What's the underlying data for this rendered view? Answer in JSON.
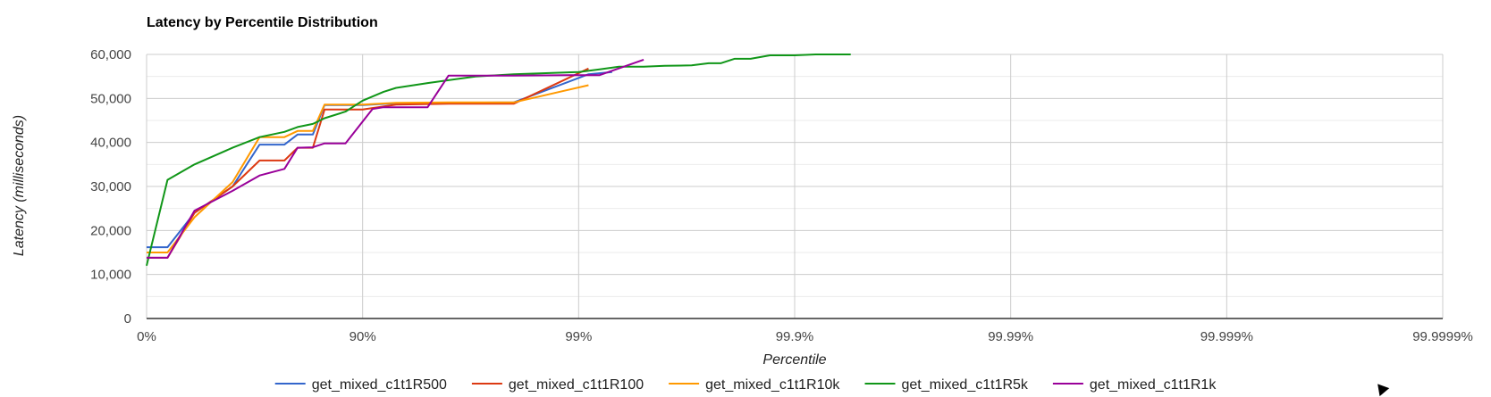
{
  "chart_data": {
    "type": "line",
    "title": "Latency by Percentile Distribution",
    "xlabel": "Percentile",
    "ylabel": "Latency (milliseconds)",
    "x_scale": "percentile-log",
    "x_ticks": [
      "0%",
      "90%",
      "99%",
      "99.9%",
      "99.99%",
      "99.999%",
      "99.9999%"
    ],
    "x_tick_values": [
      0,
      90,
      99,
      99.9,
      99.99,
      99.999,
      99.9999
    ],
    "xlim": [
      0,
      99.9999
    ],
    "y_ticks": [
      "0",
      "10,000",
      "20,000",
      "30,000",
      "40,000",
      "50,000",
      "60,000"
    ],
    "y_tick_values": [
      0,
      10000,
      20000,
      30000,
      40000,
      50000,
      60000
    ],
    "ylim": [
      0,
      60000
    ],
    "grid": true,
    "legend_position": "bottom",
    "series": [
      {
        "name": "get_mixed_c1t1R500",
        "color": "#3366cc",
        "points": [
          [
            0,
            16200
          ],
          [
            20,
            16200
          ],
          [
            40,
            24000
          ],
          [
            60,
            30000
          ],
          [
            70,
            39500
          ],
          [
            77,
            39500
          ],
          [
            80,
            41800
          ],
          [
            83,
            41800
          ],
          [
            85,
            48500
          ],
          [
            90,
            48500
          ],
          [
            93,
            48900
          ],
          [
            96,
            49000
          ],
          [
            98,
            49100
          ],
          [
            99.1,
            55500
          ],
          [
            99.3,
            56000
          ]
        ]
      },
      {
        "name": "get_mixed_c1t1R100",
        "color": "#dc3912",
        "points": [
          [
            0,
            13800
          ],
          [
            20,
            13800
          ],
          [
            40,
            24000
          ],
          [
            60,
            30000
          ],
          [
            70,
            35900
          ],
          [
            77,
            35900
          ],
          [
            80,
            38800
          ],
          [
            83,
            38800
          ],
          [
            85,
            47500
          ],
          [
            90,
            47500
          ],
          [
            93,
            48600
          ],
          [
            96,
            48800
          ],
          [
            98,
            48800
          ],
          [
            99.1,
            56800
          ]
        ]
      },
      {
        "name": "get_mixed_c1t1R10k",
        "color": "#ff9900",
        "points": [
          [
            0,
            15000
          ],
          [
            20,
            15000
          ],
          [
            40,
            23000
          ],
          [
            60,
            31000
          ],
          [
            70,
            41200
          ],
          [
            77,
            41200
          ],
          [
            80,
            42600
          ],
          [
            83,
            42600
          ],
          [
            85,
            48600
          ],
          [
            90,
            48600
          ],
          [
            93,
            49000
          ],
          [
            96,
            49100
          ],
          [
            98,
            49100
          ],
          [
            99.1,
            53000
          ]
        ]
      },
      {
        "name": "get_mixed_c1t1R5k",
        "color": "#109618",
        "points": [
          [
            0,
            12000
          ],
          [
            20,
            31500
          ],
          [
            40,
            35000
          ],
          [
            60,
            38800
          ],
          [
            70,
            41200
          ],
          [
            77,
            42400
          ],
          [
            80,
            43500
          ],
          [
            83,
            44200
          ],
          [
            85,
            45500
          ],
          [
            88,
            47000
          ],
          [
            90,
            49500
          ],
          [
            92,
            51500
          ],
          [
            93,
            52400
          ],
          [
            95,
            53500
          ],
          [
            97,
            55000
          ],
          [
            98,
            55500
          ],
          [
            99,
            56000
          ],
          [
            99.2,
            56600
          ],
          [
            99.35,
            57200
          ],
          [
            99.5,
            57200
          ],
          [
            99.6,
            57400
          ],
          [
            99.7,
            57500
          ],
          [
            99.75,
            58000
          ],
          [
            99.78,
            58000
          ],
          [
            99.81,
            59000
          ],
          [
            99.84,
            59000
          ],
          [
            99.87,
            59800
          ],
          [
            99.9,
            59800
          ],
          [
            99.92,
            60000
          ],
          [
            99.945,
            60000
          ]
        ]
      },
      {
        "name": "get_mixed_c1t1R1k",
        "color": "#990099",
        "points": [
          [
            0,
            13800
          ],
          [
            20,
            13800
          ],
          [
            40,
            24500
          ],
          [
            60,
            29000
          ],
          [
            70,
            32500
          ],
          [
            77,
            34000
          ],
          [
            80,
            38800
          ],
          [
            83,
            38900
          ],
          [
            85,
            39800
          ],
          [
            88,
            39800
          ],
          [
            91,
            47600
          ],
          [
            92,
            48000
          ],
          [
            95,
            48000
          ],
          [
            96,
            55200
          ],
          [
            98,
            55200
          ],
          [
            99,
            55300
          ],
          [
            99.2,
            55300
          ],
          [
            99.5,
            58800
          ]
        ]
      }
    ]
  }
}
